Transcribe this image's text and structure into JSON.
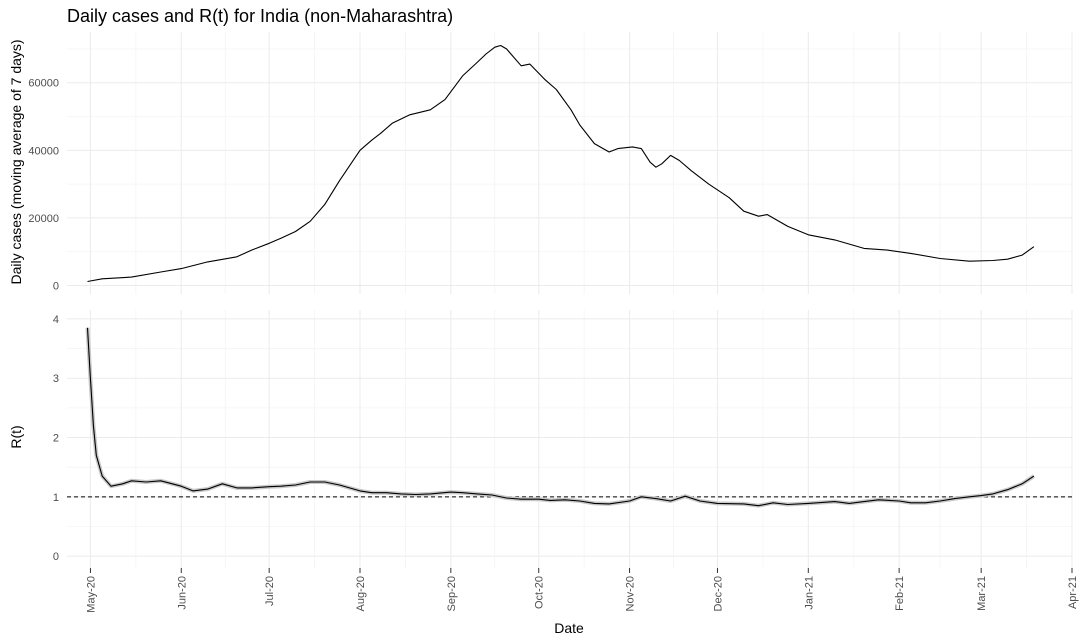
{
  "chart_data": {
    "type": "line",
    "title": "Daily cases and R(t) for India (non-Maharashtra)",
    "xlabel": "Date",
    "x_ticks": [
      "May-20",
      "Jun-20",
      "Jul-20",
      "Aug-20",
      "Sep-20",
      "Oct-20",
      "Nov-20",
      "Dec-20",
      "Jan-21",
      "Feb-21",
      "Mar-21",
      "Apr-21"
    ],
    "x_range": [
      "2020-04-23",
      "2021-04-01"
    ],
    "panels": [
      {
        "ylabel": "Daily cases (moving average of 7 days)",
        "y_ticks": [
          "0",
          "20000",
          "40000",
          "60000"
        ],
        "ylim": [
          -2500,
          75000
        ],
        "series": [
          {
            "x": [
              "2020-04-30",
              "2020-05-05",
              "2020-05-15",
              "2020-05-25",
              "2020-06-01",
              "2020-06-10",
              "2020-06-20",
              "2020-06-25",
              "2020-07-01",
              "2020-07-05",
              "2020-07-10",
              "2020-07-15",
              "2020-07-20",
              "2020-07-25",
              "2020-08-01",
              "2020-08-05",
              "2020-08-08",
              "2020-08-12",
              "2020-08-18",
              "2020-08-25",
              "2020-08-30",
              "2020-09-05",
              "2020-09-10",
              "2020-09-13",
              "2020-09-16",
              "2020-09-18",
              "2020-09-20",
              "2020-09-25",
              "2020-09-28",
              "2020-10-03",
              "2020-10-07",
              "2020-10-12",
              "2020-10-15",
              "2020-10-20",
              "2020-10-25",
              "2020-10-28",
              "2020-11-02",
              "2020-11-05",
              "2020-11-08",
              "2020-11-10",
              "2020-11-12",
              "2020-11-15",
              "2020-11-18",
              "2020-11-22",
              "2020-11-28",
              "2020-12-05",
              "2020-12-10",
              "2020-12-15",
              "2020-12-18",
              "2020-12-25",
              "2021-01-01",
              "2021-01-10",
              "2021-01-20",
              "2021-01-28",
              "2021-02-05",
              "2021-02-15",
              "2021-02-25",
              "2021-03-05",
              "2021-03-10",
              "2021-03-15",
              "2021-03-19"
            ],
            "y": [
              1200,
              2000,
              2500,
              4000,
              5000,
              7000,
              8500,
              10500,
              12500,
              14000,
              16000,
              19000,
              24000,
              31000,
              40000,
              43000,
              45000,
              48000,
              50500,
              52000,
              55000,
              62000,
              66000,
              68500,
              70500,
              71000,
              70000,
              65000,
              65500,
              61000,
              58000,
              52000,
              47500,
              42000,
              39500,
              40500,
              41000,
              40500,
              36500,
              35000,
              36000,
              38500,
              37000,
              34000,
              30000,
              26000,
              22000,
              20500,
              21000,
              17500,
              15000,
              13500,
              11000,
              10500,
              9500,
              8000,
              7200,
              7400,
              7800,
              9000,
              11500
            ]
          }
        ]
      },
      {
        "ylabel": "R(t)",
        "y_ticks": [
          "0",
          "1",
          "2",
          "3",
          "4"
        ],
        "ylim": [
          -0.2,
          4.15
        ],
        "reference_line": 1,
        "series": [
          {
            "x": [
              "2020-04-30",
              "2020-05-01",
              "2020-05-02",
              "2020-05-03",
              "2020-05-05",
              "2020-05-08",
              "2020-05-12",
              "2020-05-15",
              "2020-05-20",
              "2020-05-25",
              "2020-06-01",
              "2020-06-05",
              "2020-06-10",
              "2020-06-15",
              "2020-06-20",
              "2020-06-25",
              "2020-07-01",
              "2020-07-05",
              "2020-07-10",
              "2020-07-15",
              "2020-07-20",
              "2020-07-25",
              "2020-08-01",
              "2020-08-05",
              "2020-08-10",
              "2020-08-15",
              "2020-08-20",
              "2020-08-25",
              "2020-09-01",
              "2020-09-05",
              "2020-09-10",
              "2020-09-15",
              "2020-09-20",
              "2020-09-25",
              "2020-10-01",
              "2020-10-05",
              "2020-10-10",
              "2020-10-15",
              "2020-10-20",
              "2020-10-25",
              "2020-11-01",
              "2020-11-05",
              "2020-11-10",
              "2020-11-15",
              "2020-11-20",
              "2020-11-25",
              "2020-12-01",
              "2020-12-10",
              "2020-12-15",
              "2020-12-20",
              "2020-12-25",
              "2021-01-01",
              "2021-01-10",
              "2021-01-15",
              "2021-01-20",
              "2021-01-25",
              "2021-02-01",
              "2021-02-05",
              "2021-02-10",
              "2021-02-15",
              "2021-02-20",
              "2021-02-25",
              "2021-03-01",
              "2021-03-05",
              "2021-03-10",
              "2021-03-15",
              "2021-03-19"
            ],
            "y": [
              3.85,
              3.0,
              2.2,
              1.7,
              1.35,
              1.18,
              1.22,
              1.27,
              1.25,
              1.27,
              1.18,
              1.1,
              1.13,
              1.22,
              1.15,
              1.15,
              1.17,
              1.18,
              1.2,
              1.25,
              1.25,
              1.2,
              1.1,
              1.07,
              1.07,
              1.05,
              1.04,
              1.05,
              1.08,
              1.07,
              1.05,
              1.03,
              0.98,
              0.96,
              0.96,
              0.94,
              0.95,
              0.93,
              0.89,
              0.88,
              0.93,
              1.0,
              0.97,
              0.93,
              1.01,
              0.93,
              0.89,
              0.88,
              0.85,
              0.9,
              0.87,
              0.89,
              0.92,
              0.89,
              0.92,
              0.95,
              0.93,
              0.9,
              0.9,
              0.93,
              0.97,
              1.0,
              1.02,
              1.05,
              1.12,
              1.22,
              1.35
            ]
          }
        ]
      }
    ]
  }
}
